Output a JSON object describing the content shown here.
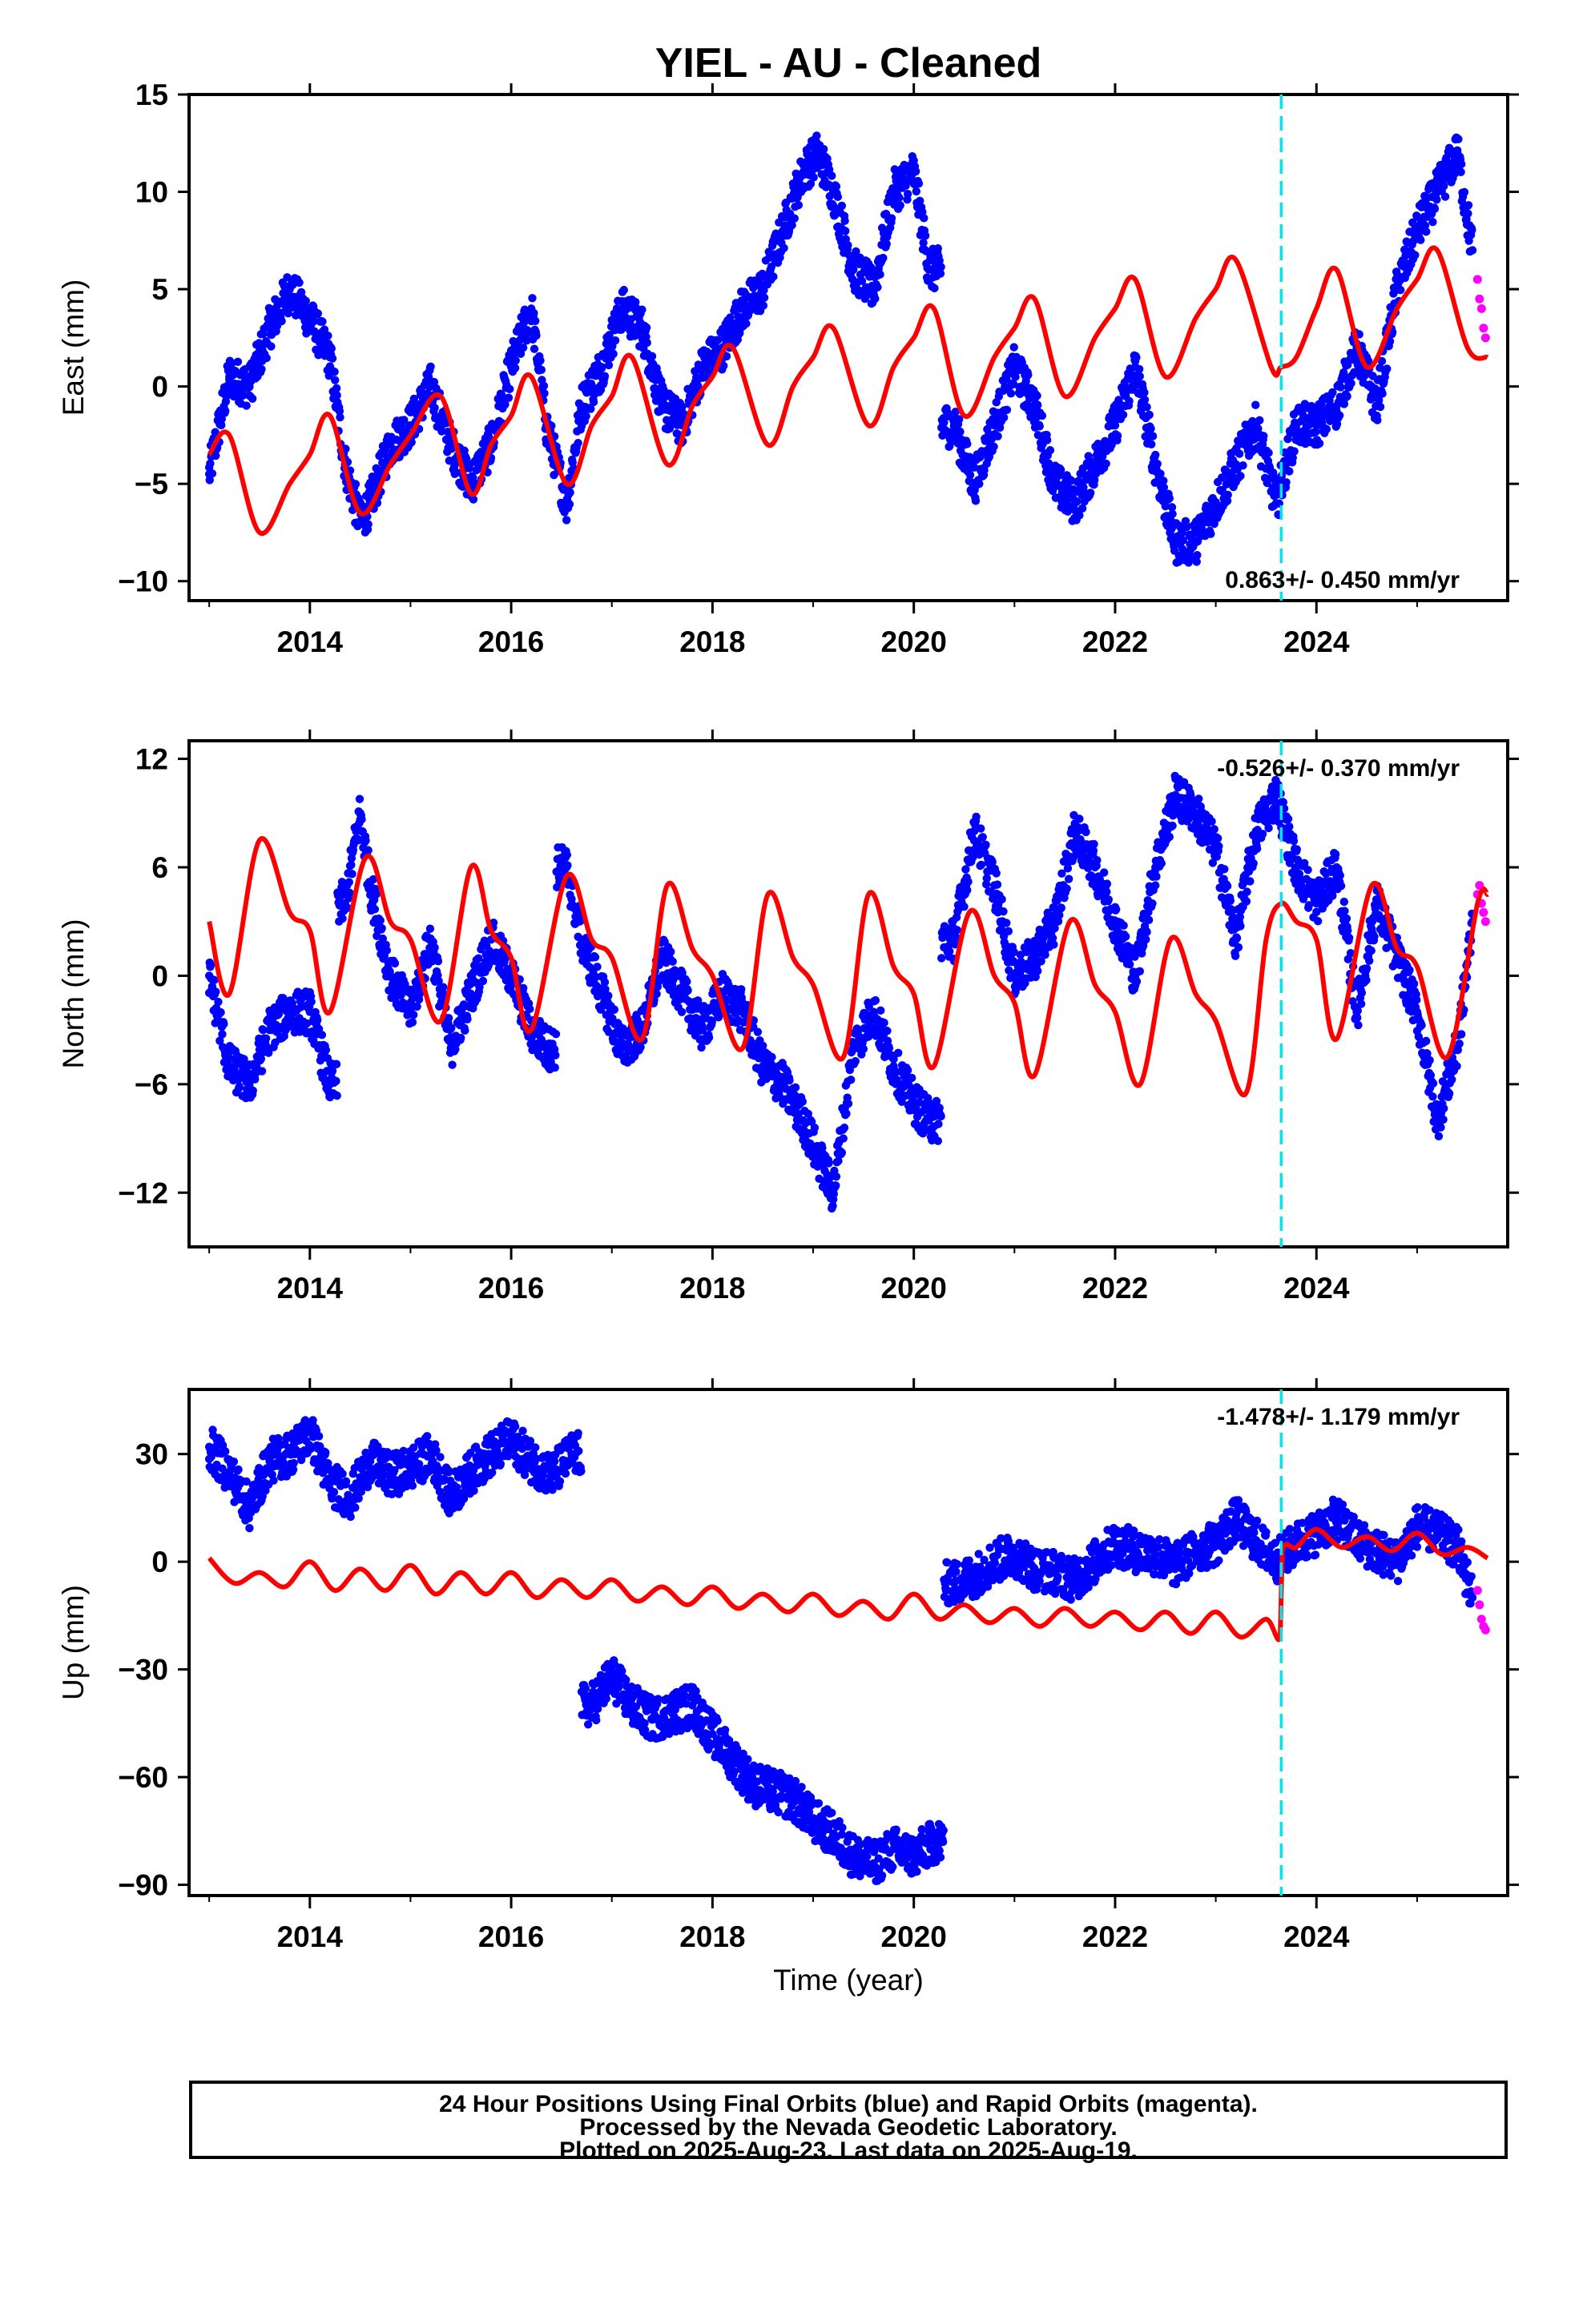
{
  "title": "YIEL  - AU - Cleaned",
  "xlabel": "Time (year)",
  "footer": {
    "line1": "24 Hour Positions Using Final Orbits (blue) and Rapid Orbits (magenta).",
    "line2": "Processed by the Nevada Geodetic Laboratory.",
    "line3": "Plotted on 2025-Aug-23. Last data on 2025-Aug-19."
  },
  "colors": {
    "final_orbits": "#0000ff",
    "rapid_orbits": "#ff00ff",
    "model": "#ff0000",
    "equipment_change": "#00e5ee"
  },
  "chart_data": [
    {
      "type": "scatter",
      "panel": "east",
      "ylabel": "East (mm)",
      "rate_label": "0.863+/- 0.450 mm/yr",
      "xlim": [
        2012.8,
        2025.9
      ],
      "ylim": [
        -11,
        15
      ],
      "yticks": [
        15,
        10,
        5,
        0,
        -5,
        -10
      ],
      "xticks": [
        2014,
        2016,
        2018,
        2020,
        2022,
        2024
      ],
      "grid": false,
      "vline_x": 2023.65,
      "series": [
        {
          "name": "Final Orbits",
          "color": "#0000ff",
          "x": [
            2013.0,
            2013.2,
            2013.4,
            2013.6,
            2013.8,
            2014.0,
            2014.2,
            2014.35,
            2014.5,
            2014.6,
            2014.8,
            2015.0,
            2015.2,
            2015.4,
            2015.6,
            2015.8,
            2016.0,
            2016.2,
            2016.35,
            2016.55,
            2016.7,
            2016.9,
            2017.1,
            2017.3,
            2017.5,
            2017.7,
            2017.9,
            2018.1,
            2018.3,
            2018.5,
            2018.7,
            2018.9,
            2019.05,
            2019.2,
            2019.4,
            2019.6,
            2019.8,
            2020.0,
            2020.15,
            2020.4,
            2020.6,
            2020.8,
            2021.0,
            2021.2,
            2021.4,
            2021.6,
            2021.8,
            2022.0,
            2022.2,
            2022.4,
            2022.6,
            2022.8,
            2023.0,
            2023.2,
            2023.4,
            2023.6,
            2023.8,
            2024.0,
            2024.2,
            2024.4,
            2024.6,
            2024.8,
            2025.0,
            2025.2,
            2025.4,
            2025.55
          ],
          "y": [
            -4.5,
            0.5,
            0.0,
            3.0,
            5.0,
            3.5,
            1.5,
            -4.0,
            -7.0,
            -6.0,
            -3.0,
            -2.0,
            0.0,
            -3.0,
            -5.0,
            -3.0,
            1.0,
            4.0,
            -2.0,
            -6.0,
            -1.0,
            1.0,
            4.0,
            3.0,
            -1.0,
            -2.0,
            1.0,
            2.0,
            4.0,
            5.0,
            8.0,
            11.0,
            12.0,
            10.0,
            6.0,
            5.0,
            10.0,
            11.0,
            6.0,
            -2.0,
            -5.0,
            -2.0,
            1.0,
            -1.0,
            -5.0,
            -6.0,
            -4.0,
            -2.0,
            1.0,
            -4.0,
            -8.0,
            -8.0,
            -6.0,
            -4.0,
            -2.0,
            -6.0,
            -2.0,
            -2.0,
            -1.0,
            2.0,
            -1.0,
            5.0,
            8.0,
            10.0,
            12.0,
            7.0
          ]
        },
        {
          "name": "Rapid Orbits",
          "color": "#ff00ff",
          "x": [
            2025.6,
            2025.62,
            2025.64,
            2025.66,
            2025.68
          ],
          "y": [
            5.5,
            4.5,
            4.0,
            3.0,
            2.5
          ]
        },
        {
          "name": "Model",
          "color": "#ff0000",
          "kind": "line",
          "x": [
            2013.0,
            2013.2,
            2013.5,
            2013.8,
            2014.0,
            2014.2,
            2014.5,
            2014.8,
            2015.0,
            2015.3,
            2015.6,
            2015.8,
            2016.0,
            2016.2,
            2016.55,
            2016.8,
            2017.0,
            2017.2,
            2017.55,
            2017.8,
            2018.0,
            2018.2,
            2018.55,
            2018.8,
            2019.0,
            2019.2,
            2019.55,
            2019.8,
            2020.0,
            2020.2,
            2020.5,
            2020.8,
            2021.0,
            2021.2,
            2021.5,
            2021.8,
            2022.0,
            2022.2,
            2022.5,
            2022.8,
            2023.0,
            2023.2,
            2023.55,
            2023.65,
            2023.8,
            2024.0,
            2024.2,
            2024.5,
            2024.8,
            2025.0,
            2025.2,
            2025.5,
            2025.7
          ],
          "y": [
            -3.5,
            -2.5,
            -7.5,
            -5.0,
            -3.5,
            -1.5,
            -6.5,
            -4.0,
            -2.5,
            -0.5,
            -5.5,
            -3.0,
            -1.5,
            0.5,
            -5.0,
            -2.0,
            -0.5,
            1.5,
            -4.0,
            -1.0,
            0.5,
            2.0,
            -3.0,
            0.0,
            1.5,
            3.0,
            -2.0,
            1.0,
            2.5,
            4.0,
            -1.5,
            1.5,
            3.0,
            4.5,
            -0.5,
            2.5,
            4.0,
            5.5,
            0.5,
            3.5,
            5.0,
            6.5,
            1.0,
            1.0,
            1.5,
            4.0,
            6.0,
            1.0,
            4.0,
            5.5,
            7.0,
            2.0,
            1.5
          ]
        }
      ]
    },
    {
      "type": "scatter",
      "panel": "north",
      "ylabel": "North (mm)",
      "rate_label": "-0.526+/- 0.370 mm/yr",
      "xlim": [
        2012.8,
        2025.9
      ],
      "ylim": [
        -15,
        13
      ],
      "yticks": [
        12,
        6,
        0,
        -6,
        -12
      ],
      "xticks": [
        2014,
        2016,
        2018,
        2020,
        2022,
        2024
      ],
      "grid": false,
      "vline_x": 2023.65,
      "series": [
        {
          "name": "Final Orbits",
          "color": "#0000ff",
          "x": [
            2013.0,
            2013.2,
            2013.4,
            2013.6,
            2013.8,
            2014.0,
            2014.2,
            2014.35,
            2014.5,
            2014.6,
            2014.8,
            2015.0,
            2015.2,
            2015.4,
            2015.6,
            2015.8,
            2016.0,
            2016.2,
            2016.35,
            2016.55,
            2016.7,
            2016.9,
            2017.1,
            2017.3,
            2017.5,
            2017.7,
            2017.9,
            2018.1,
            2018.3,
            2018.5,
            2018.7,
            2018.9,
            2019.05,
            2019.2,
            2019.4,
            2019.6,
            2019.8,
            2020.0,
            2020.15,
            2020.4,
            2020.6,
            2020.8,
            2021.0,
            2021.2,
            2021.4,
            2021.6,
            2021.8,
            2022.0,
            2022.2,
            2022.4,
            2022.6,
            2022.8,
            2023.0,
            2023.2,
            2023.4,
            2023.6,
            2023.8,
            2024.0,
            2024.2,
            2024.4,
            2024.6,
            2024.8,
            2025.0,
            2025.2,
            2025.4,
            2025.55
          ],
          "y": [
            0.0,
            -5.0,
            -6.0,
            -3.0,
            -2.0,
            -2.0,
            -6.0,
            4.0,
            9.0,
            5.0,
            0.0,
            -2.0,
            2.0,
            -4.0,
            -1.0,
            2.0,
            0.0,
            -3.0,
            -4.0,
            6.0,
            2.0,
            -1.0,
            -4.0,
            -3.0,
            1.0,
            -1.0,
            -3.0,
            -1.0,
            -2.0,
            -5.0,
            -6.0,
            -8.0,
            -10.0,
            -12.0,
            -4.0,
            -2.0,
            -5.0,
            -7.0,
            -8.0,
            2.0,
            8.0,
            5.0,
            0.0,
            1.0,
            3.0,
            8.0,
            6.0,
            3.0,
            0.0,
            6.0,
            10.0,
            9.0,
            7.0,
            2.0,
            8.0,
            10.0,
            6.0,
            4.0,
            6.0,
            -2.0,
            4.0,
            1.0,
            -2.0,
            -8.0,
            -4.0,
            3.0
          ]
        },
        {
          "name": "Rapid Orbits",
          "color": "#ff00ff",
          "x": [
            2025.6,
            2025.62,
            2025.64,
            2025.66,
            2025.68
          ],
          "y": [
            4.5,
            5.0,
            4.0,
            3.5,
            3.0
          ]
        },
        {
          "name": "Model",
          "color": "#ff0000",
          "kind": "line",
          "x": [
            2013.0,
            2013.2,
            2013.5,
            2013.8,
            2014.0,
            2014.2,
            2014.55,
            2014.8,
            2015.0,
            2015.3,
            2015.6,
            2015.8,
            2016.0,
            2016.2,
            2016.55,
            2016.8,
            2017.0,
            2017.3,
            2017.55,
            2017.8,
            2018.0,
            2018.3,
            2018.55,
            2018.8,
            2019.0,
            2019.3,
            2019.55,
            2019.8,
            2020.0,
            2020.2,
            2020.55,
            2020.8,
            2021.0,
            2021.2,
            2021.55,
            2021.8,
            2022.0,
            2022.25,
            2022.55,
            2022.8,
            2023.0,
            2023.3,
            2023.5,
            2023.65,
            2023.8,
            2024.0,
            2024.2,
            2024.55,
            2024.8,
            2025.0,
            2025.3,
            2025.6,
            2025.7
          ],
          "y": [
            3.0,
            -1.0,
            7.5,
            3.5,
            2.5,
            -2.0,
            6.5,
            3.0,
            2.0,
            -2.5,
            6.0,
            2.5,
            1.0,
            -3.0,
            5.5,
            2.0,
            1.0,
            -3.5,
            5.0,
            1.5,
            0.0,
            -4.0,
            4.5,
            1.0,
            -0.5,
            -4.5,
            4.5,
            0.5,
            -1.0,
            -5.0,
            3.5,
            0.0,
            -1.5,
            -5.5,
            3.0,
            -0.5,
            -2.0,
            -6.0,
            2.0,
            -1.0,
            -2.5,
            -6.5,
            2.0,
            4.0,
            3.0,
            2.0,
            -3.5,
            5.0,
            1.5,
            0.5,
            -4.5,
            4.0,
            4.5
          ]
        }
      ]
    },
    {
      "type": "scatter",
      "panel": "up",
      "ylabel": "Up (mm)",
      "rate_label": "-1.478+/- 1.179 mm/yr",
      "xlim": [
        2012.8,
        2025.9
      ],
      "ylim": [
        -93,
        48
      ],
      "yticks": [
        30,
        0,
        -30,
        -60,
        -90
      ],
      "xticks": [
        2014,
        2016,
        2018,
        2020,
        2022,
        2024
      ],
      "grid": false,
      "vline_x": 2023.65,
      "series": [
        {
          "name": "Final Orbits",
          "color": "#0000ff",
          "x": [
            2013.0,
            2013.2,
            2013.4,
            2013.6,
            2013.8,
            2014.0,
            2014.2,
            2014.4,
            2014.6,
            2014.8,
            2015.0,
            2015.2,
            2015.4,
            2015.6,
            2015.8,
            2016.0,
            2016.2,
            2016.4,
            2016.6,
            2016.8,
            2017.0,
            2017.2,
            2017.4,
            2017.6,
            2017.8,
            2018.0,
            2018.2,
            2018.4,
            2018.6,
            2018.8,
            2019.0,
            2019.2,
            2019.4,
            2019.6,
            2019.8,
            2020.0,
            2020.2,
            2020.4,
            2020.6,
            2020.8,
            2021.0,
            2021.2,
            2021.4,
            2021.6,
            2021.8,
            2022.0,
            2022.2,
            2022.4,
            2022.6,
            2022.8,
            2023.0,
            2023.2,
            2023.4,
            2023.6,
            2023.8,
            2024.0,
            2024.2,
            2024.4,
            2024.6,
            2024.8,
            2025.0,
            2025.2,
            2025.4,
            2025.55
          ],
          "y": [
            32.0,
            25.0,
            15.0,
            28.0,
            30.0,
            36.0,
            22.0,
            18.0,
            28.0,
            24.0,
            26.0,
            30.0,
            18.0,
            25.0,
            30.0,
            34.0,
            28.0,
            24.0,
            30.0,
            -40.0,
            -32.0,
            -40.0,
            -44.0,
            -42.0,
            -40.0,
            -48.0,
            -55.0,
            -62.0,
            -64.0,
            -66.0,
            -72.0,
            -76.0,
            -82.0,
            -84.0,
            -80.0,
            -82.0,
            -78.0,
            -6.0,
            -4.0,
            0.0,
            2.0,
            -2.0,
            -3.0,
            -5.0,
            0.0,
            5.0,
            3.0,
            2.0,
            -1.0,
            3.0,
            5.0,
            12.0,
            6.0,
            0.0,
            5.0,
            8.0,
            12.0,
            6.0,
            3.0,
            0.0,
            10.0,
            8.0,
            4.0,
            -10.0
          ]
        },
        {
          "name": "Rapid Orbits",
          "color": "#ff00ff",
          "x": [
            2025.6,
            2025.62,
            2025.64,
            2025.66,
            2025.68
          ],
          "y": [
            -8.0,
            -12.0,
            -16.0,
            -18.0,
            -19.0
          ]
        },
        {
          "name": "Model",
          "color": "#ff0000",
          "kind": "line",
          "x": [
            2013.0,
            2013.25,
            2013.5,
            2013.75,
            2014.0,
            2014.25,
            2014.5,
            2014.75,
            2015.0,
            2015.25,
            2015.5,
            2015.75,
            2016.0,
            2016.25,
            2016.5,
            2016.75,
            2017.0,
            2017.25,
            2017.5,
            2017.75,
            2018.0,
            2018.25,
            2018.5,
            2018.75,
            2019.0,
            2019.25,
            2019.5,
            2019.75,
            2020.0,
            2020.25,
            2020.5,
            2020.75,
            2021.0,
            2021.25,
            2021.5,
            2021.75,
            2022.0,
            2022.25,
            2022.5,
            2022.75,
            2023.0,
            2023.25,
            2023.5,
            2023.64,
            2023.66,
            2023.8,
            2024.0,
            2024.25,
            2024.5,
            2024.75,
            2025.0,
            2025.25,
            2025.5,
            2025.7
          ],
          "y": [
            1.0,
            -6.0,
            -3.0,
            -7.0,
            0.0,
            -8.0,
            -2.0,
            -8.0,
            -1.0,
            -9.0,
            -3.0,
            -9.0,
            -3.0,
            -10.0,
            -5.0,
            -10.0,
            -5.0,
            -11.0,
            -7.0,
            -12.0,
            -7.0,
            -13.0,
            -9.0,
            -14.0,
            -9.0,
            -15.0,
            -11.0,
            -16.0,
            -9.0,
            -16.0,
            -12.0,
            -17.0,
            -13.0,
            -18.0,
            -13.0,
            -18.0,
            -14.0,
            -19.0,
            -14.0,
            -20.0,
            -14.0,
            -21.0,
            -16.0,
            -21.0,
            3.0,
            4.0,
            9.0,
            4.0,
            7.0,
            3.0,
            8.0,
            2.0,
            4.0,
            1.0
          ]
        }
      ]
    }
  ]
}
